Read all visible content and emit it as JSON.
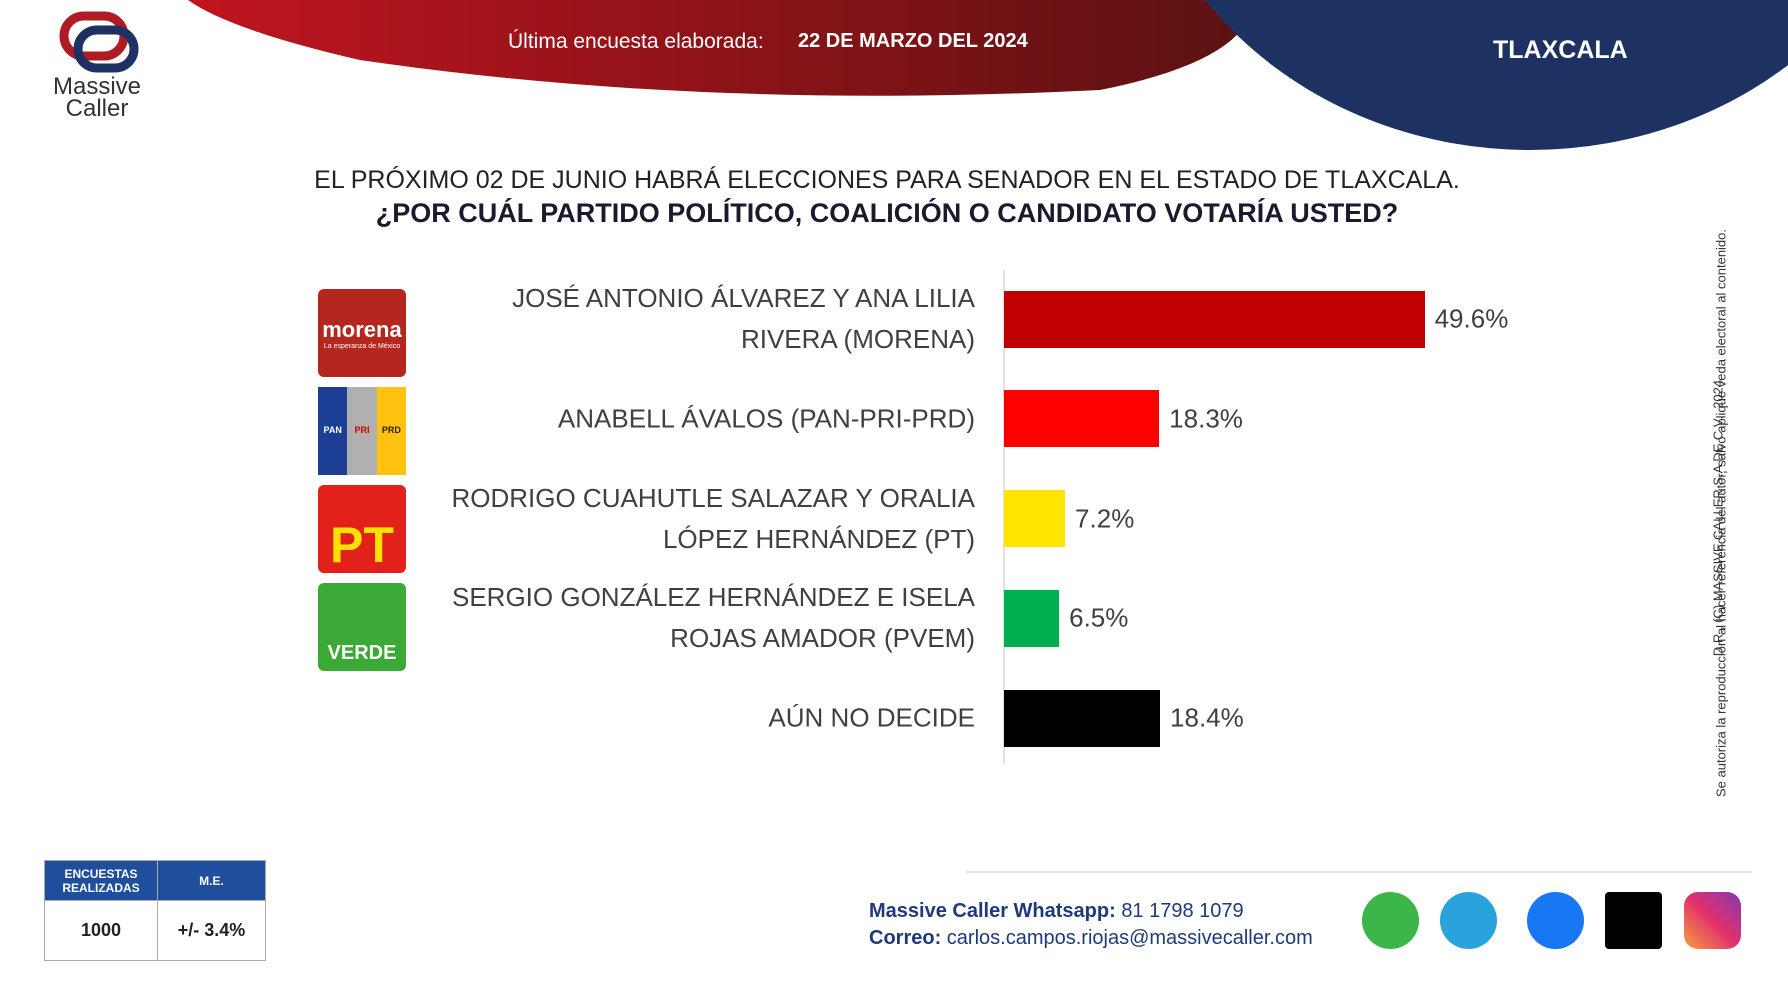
{
  "header": {
    "brand_line1": "Massive",
    "brand_line2": "Caller",
    "survey_label": "Última encuesta elaborada:",
    "survey_date": "22 DE MARZO DEL 2024",
    "state": "TLAXCALA"
  },
  "chart_data": {
    "type": "bar",
    "orientation": "horizontal",
    "title": "EL PRÓXIMO 02 DE JUNIO HABRÁ ELECCIONES PARA SENADOR EN EL ESTADO DE TLAXCALA.",
    "subtitle": "¿POR CUÁL PARTIDO POLÍTICO, COALICIÓN O CANDIDATO  VOTARÍA USTED?",
    "categories": [
      "JOSÉ ANTONIO ÁLVAREZ  Y ANA LILIA RIVERA (MORENA)",
      "ANABELL ÁVALOS (PAN-PRI-PRD)",
      "RODRIGO CUAHUTLE SALAZAR Y ORALIA LÓPEZ HERNÁNDEZ (PT)",
      "SERGIO GONZÁLEZ HERNÁNDEZ  E ISELA ROJAS AMADOR (PVEM)",
      "AÚN NO DECIDE"
    ],
    "values": [
      49.6,
      18.3,
      7.2,
      6.5,
      18.4
    ],
    "value_labels": [
      "49.6%",
      "18.3%",
      "7.2%",
      "6.5%",
      "18.4%"
    ],
    "colors": [
      "#c00000",
      "#ff0000",
      "#ffe600",
      "#00b050",
      "#000000"
    ]
  },
  "logos": {
    "morena": "morena",
    "morena_tag": "La esperanza de México",
    "pan": "PAN",
    "pri": "PRI",
    "prd": "PRD",
    "pt": "PT",
    "verde": "VERDE"
  },
  "copyright": {
    "line1": "D.R., (C) MASSIVE CALLER S.A DE C.V., 2024",
    "line2": "Se autoriza la reproducción al hacer referencia del autor, salvo aplique veda electoral al contenido."
  },
  "table": {
    "headers": [
      "ENCUESTAS REALIZADAS",
      "M.E."
    ],
    "rows": [
      [
        "1000",
        "+/- 3.4%"
      ]
    ]
  },
  "footer": {
    "whatsapp_label": "Massive Caller Whatsapp:",
    "whatsapp": "81 1798  1079",
    "email_label": "Correo:",
    "email": "carlos.campos.riojas@massivecaller.com"
  }
}
